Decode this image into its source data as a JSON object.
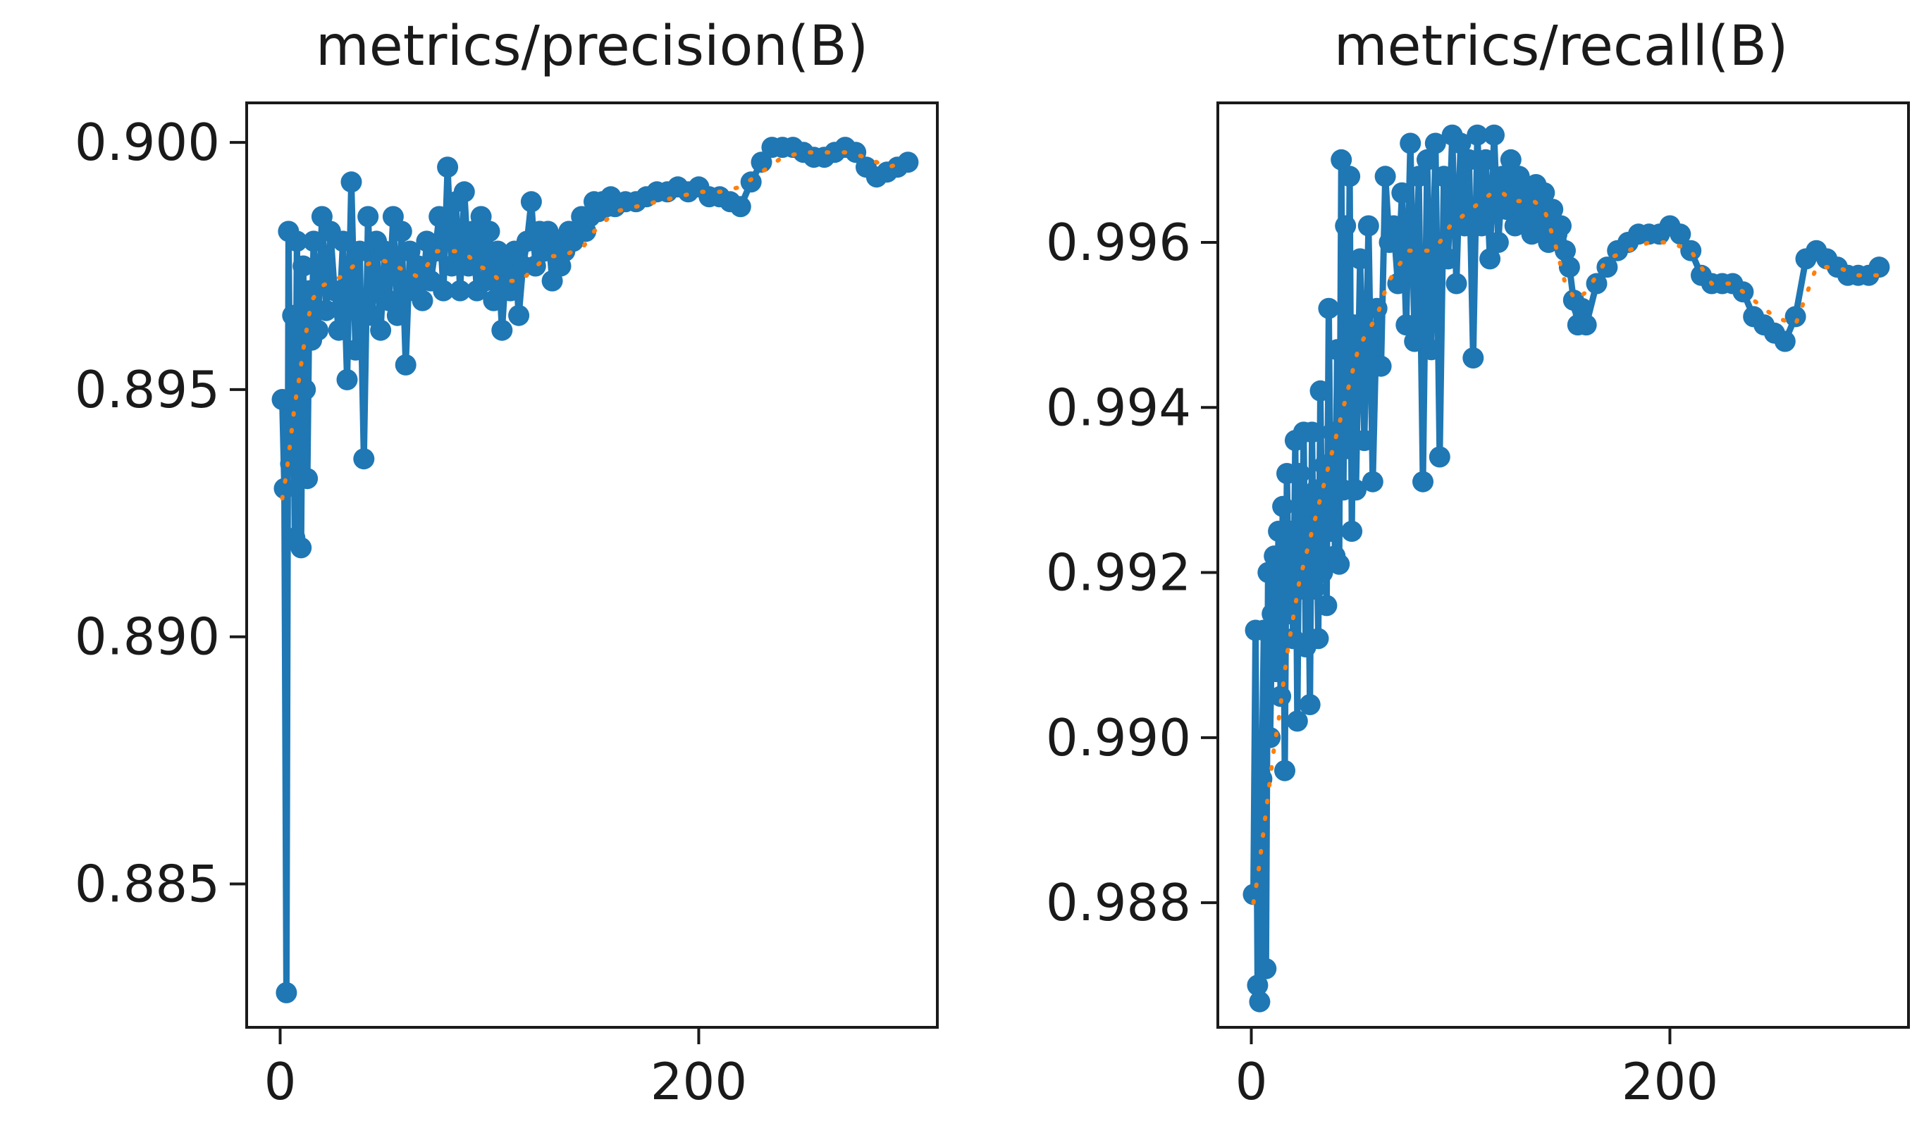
{
  "chart_data": [
    {
      "type": "line",
      "title": "metrics/precision(B)",
      "xlabel": "",
      "ylabel": "",
      "xlim": [
        -16,
        314
      ],
      "ylim": [
        0.8821,
        0.9008
      ],
      "xticks": [
        0,
        200
      ],
      "xtick_labels": [
        "0",
        "200"
      ],
      "yticks": [
        0.885,
        0.89,
        0.895,
        0.9
      ],
      "ytick_labels": [
        "0.885",
        "0.890",
        "0.895",
        "0.900"
      ],
      "grid": false,
      "series": [
        {
          "role": "raw",
          "color": "#1f77b4",
          "marker": "o",
          "x": [
            1,
            2,
            3,
            4,
            5,
            6,
            7,
            8,
            9,
            10,
            11,
            12,
            13,
            14,
            15,
            16,
            18,
            20,
            22,
            24,
            26,
            28,
            30,
            32,
            34,
            36,
            38,
            40,
            42,
            44,
            46,
            48,
            50,
            52,
            54,
            56,
            58,
            60,
            62,
            64,
            66,
            68,
            70,
            72,
            74,
            76,
            78,
            80,
            82,
            84,
            86,
            88,
            90,
            92,
            94,
            96,
            98,
            100,
            102,
            104,
            106,
            108,
            110,
            112,
            114,
            116,
            118,
            120,
            122,
            124,
            126,
            128,
            130,
            132,
            134,
            136,
            138,
            140,
            142,
            144,
            146,
            148,
            150,
            152,
            154,
            156,
            158,
            160,
            165,
            170,
            175,
            180,
            185,
            190,
            195,
            200,
            205,
            210,
            215,
            220,
            225,
            230,
            235,
            240,
            245,
            250,
            255,
            260,
            265,
            270,
            275,
            280,
            285,
            290,
            295,
            300
          ],
          "y": [
            0.8948,
            0.893,
            0.8828,
            0.8982,
            0.8935,
            0.8965,
            0.892,
            0.898,
            0.8945,
            0.8918,
            0.8975,
            0.895,
            0.8932,
            0.897,
            0.896,
            0.898,
            0.8962,
            0.8985,
            0.8966,
            0.8982,
            0.897,
            0.8962,
            0.898,
            0.8952,
            0.8992,
            0.8958,
            0.8978,
            0.8936,
            0.8985,
            0.8965,
            0.898,
            0.8962,
            0.8978,
            0.8968,
            0.8985,
            0.8965,
            0.8982,
            0.8955,
            0.8978,
            0.897,
            0.8975,
            0.8968,
            0.898,
            0.8972,
            0.8978,
            0.8985,
            0.897,
            0.8995,
            0.8975,
            0.8988,
            0.897,
            0.899,
            0.8975,
            0.8982,
            0.897,
            0.8985,
            0.8972,
            0.8982,
            0.8968,
            0.8978,
            0.8962,
            0.8975,
            0.897,
            0.8978,
            0.8965,
            0.8975,
            0.898,
            0.8988,
            0.8975,
            0.8982,
            0.8978,
            0.8982,
            0.8972,
            0.898,
            0.8975,
            0.8978,
            0.8982,
            0.898,
            0.8982,
            0.8985,
            0.8982,
            0.8985,
            0.8988,
            0.8986,
            0.8988,
            0.8987,
            0.8989,
            0.8987,
            0.8988,
            0.8988,
            0.8989,
            0.899,
            0.899,
            0.8991,
            0.899,
            0.8991,
            0.8989,
            0.8989,
            0.8988,
            0.8987,
            0.8992,
            0.8996,
            0.8999,
            0.8999,
            0.8999,
            0.8998,
            0.8997,
            0.8997,
            0.8998,
            0.8999,
            0.8998,
            0.8995,
            0.8993,
            0.8994,
            0.8995,
            0.8996
          ]
        },
        {
          "role": "smooth",
          "color": "#ff7f0e",
          "marker": "dotted",
          "x": [
            1,
            3,
            5,
            7,
            9,
            11,
            13,
            15,
            20,
            25,
            30,
            35,
            40,
            45,
            50,
            55,
            60,
            65,
            70,
            75,
            80,
            85,
            90,
            95,
            100,
            105,
            110,
            115,
            120,
            125,
            130,
            135,
            140,
            145,
            150,
            155,
            160,
            170,
            180,
            190,
            200,
            210,
            220,
            230,
            240,
            250,
            260,
            270,
            280,
            290,
            300
          ],
          "y": [
            0.8928,
            0.8933,
            0.894,
            0.8947,
            0.8952,
            0.8958,
            0.8963,
            0.8968,
            0.8971,
            0.8972,
            0.8973,
            0.8975,
            0.8975,
            0.8976,
            0.8976,
            0.8975,
            0.8974,
            0.8973,
            0.8975,
            0.8978,
            0.8978,
            0.8978,
            0.8977,
            0.8975,
            0.8974,
            0.8972,
            0.8972,
            0.8972,
            0.8974,
            0.8976,
            0.8977,
            0.8977,
            0.8978,
            0.8979,
            0.8982,
            0.8984,
            0.8986,
            0.8987,
            0.8988,
            0.8989,
            0.899,
            0.899,
            0.8991,
            0.8994,
            0.8997,
            0.8998,
            0.8998,
            0.8998,
            0.8997,
            0.8995,
            0.8996
          ]
        }
      ]
    },
    {
      "type": "line",
      "title": "metrics/recall(B)",
      "xlabel": "",
      "ylabel": "",
      "xlim": [
        -16,
        314
      ],
      "ylim": [
        0.98649,
        0.99769
      ],
      "xticks": [
        0,
        200
      ],
      "xtick_labels": [
        "0",
        "200"
      ],
      "yticks": [
        0.988,
        0.99,
        0.992,
        0.994,
        0.996
      ],
      "ytick_labels": [
        "0.988",
        "0.990",
        "0.992",
        "0.994",
        "0.996"
      ],
      "grid": false,
      "series": [
        {
          "role": "raw",
          "color": "#1f77b4",
          "marker": "o",
          "x": [
            1,
            2,
            3,
            4,
            5,
            6,
            7,
            8,
            9,
            10,
            11,
            12,
            13,
            14,
            15,
            16,
            17,
            18,
            19,
            20,
            21,
            22,
            23,
            24,
            25,
            26,
            27,
            28,
            29,
            30,
            31,
            32,
            33,
            34,
            35,
            36,
            37,
            38,
            39,
            40,
            41,
            42,
            43,
            44,
            45,
            46,
            47,
            48,
            49,
            50,
            52,
            54,
            56,
            58,
            60,
            62,
            64,
            66,
            68,
            70,
            72,
            74,
            76,
            78,
            80,
            82,
            84,
            86,
            88,
            90,
            92,
            94,
            96,
            98,
            100,
            102,
            104,
            106,
            108,
            110,
            112,
            114,
            116,
            118,
            120,
            122,
            124,
            126,
            128,
            130,
            132,
            134,
            136,
            138,
            140,
            142,
            144,
            146,
            148,
            150,
            152,
            154,
            156,
            158,
            160,
            165,
            170,
            175,
            180,
            185,
            190,
            195,
            200,
            205,
            210,
            215,
            220,
            225,
            230,
            235,
            240,
            245,
            250,
            255,
            260,
            265,
            270,
            275,
            280,
            285,
            290,
            295,
            300
          ],
          "y": [
            0.9881,
            0.9913,
            0.987,
            0.9868,
            0.9895,
            0.9913,
            0.9872,
            0.992,
            0.99,
            0.9915,
            0.9922,
            0.9908,
            0.9925,
            0.9905,
            0.9928,
            0.9896,
            0.9932,
            0.9915,
            0.9925,
            0.9912,
            0.9936,
            0.9902,
            0.9932,
            0.9918,
            0.9937,
            0.9911,
            0.9928,
            0.9904,
            0.9937,
            0.9918,
            0.993,
            0.9912,
            0.9942,
            0.992,
            0.9933,
            0.9916,
            0.9952,
            0.9925,
            0.9937,
            0.9922,
            0.9947,
            0.9921,
            0.997,
            0.993,
            0.9962,
            0.9935,
            0.9968,
            0.9925,
            0.995,
            0.993,
            0.9958,
            0.9936,
            0.9962,
            0.9931,
            0.9952,
            0.9945,
            0.9968,
            0.996,
            0.9962,
            0.9955,
            0.9966,
            0.995,
            0.9972,
            0.9948,
            0.9968,
            0.9931,
            0.997,
            0.9947,
            0.9972,
            0.9934,
            0.9968,
            0.9958,
            0.9973,
            0.9955,
            0.9972,
            0.9962,
            0.997,
            0.9946,
            0.9973,
            0.9962,
            0.997,
            0.9958,
            0.9973,
            0.996,
            0.9968,
            0.9964,
            0.997,
            0.9962,
            0.9968,
            0.9963,
            0.9966,
            0.9961,
            0.9967,
            0.9962,
            0.9966,
            0.996,
            0.9964,
            0.9961,
            0.9962,
            0.9959,
            0.9957,
            0.9953,
            0.995,
            0.9952,
            0.995,
            0.9955,
            0.9957,
            0.9959,
            0.996,
            0.9961,
            0.9961,
            0.9961,
            0.9962,
            0.9961,
            0.9959,
            0.9956,
            0.9955,
            0.9955,
            0.9955,
            0.9954,
            0.9951,
            0.995,
            0.9949,
            0.9948,
            0.9951,
            0.9958,
            0.9959,
            0.9958,
            0.9957,
            0.9956,
            0.9956,
            0.9956,
            0.9957
          ]
        },
        {
          "role": "smooth",
          "color": "#ff7f0e",
          "marker": "dotted",
          "x": [
            1,
            3,
            5,
            7,
            9,
            11,
            13,
            15,
            17,
            19,
            21,
            23,
            25,
            27,
            29,
            31,
            33,
            35,
            37,
            39,
            41,
            43,
            45,
            47,
            49,
            51,
            55,
            60,
            65,
            70,
            75,
            80,
            85,
            90,
            95,
            100,
            105,
            110,
            115,
            120,
            125,
            130,
            135,
            140,
            145,
            150,
            155,
            160,
            170,
            180,
            190,
            200,
            210,
            220,
            230,
            240,
            250,
            260,
            270,
            280,
            290,
            300
          ],
          "y": [
            0.988,
            0.9883,
            0.9887,
            0.9891,
            0.9895,
            0.9899,
            0.9902,
            0.9906,
            0.991,
            0.9913,
            0.9916,
            0.9919,
            0.9921,
            0.9923,
            0.9925,
            0.9927,
            0.9929,
            0.9931,
            0.9933,
            0.9935,
            0.9937,
            0.9939,
            0.9941,
            0.9943,
            0.9945,
            0.9947,
            0.9949,
            0.9951,
            0.9955,
            0.9957,
            0.9959,
            0.9959,
            0.9959,
            0.996,
            0.9962,
            0.9963,
            0.9964,
            0.9965,
            0.9966,
            0.9966,
            0.9965,
            0.9965,
            0.9965,
            0.9964,
            0.996,
            0.9955,
            0.9953,
            0.9954,
            0.9958,
            0.9959,
            0.996,
            0.996,
            0.9959,
            0.9955,
            0.9955,
            0.9953,
            0.9951,
            0.995,
            0.9957,
            0.9957,
            0.9956,
            0.9956
          ]
        }
      ]
    }
  ]
}
